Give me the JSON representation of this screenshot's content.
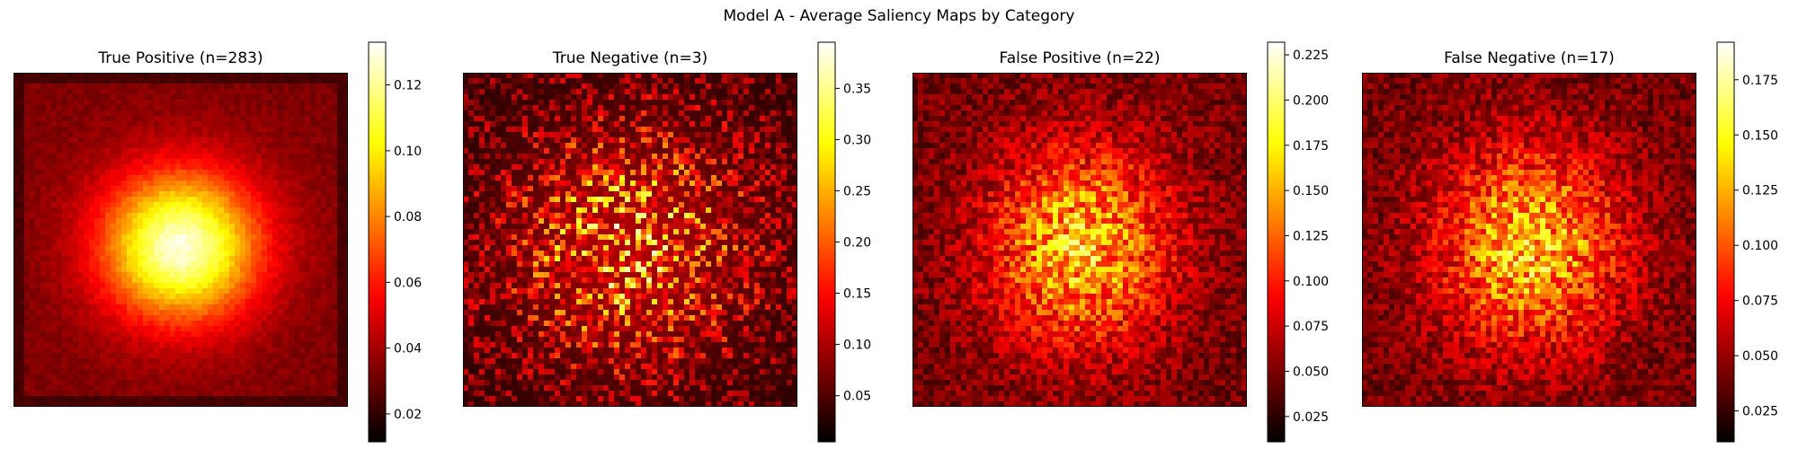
{
  "figure": {
    "suptitle": "Model A - Average Saliency Maps by Category",
    "colormap": "hot"
  },
  "chart_data": [
    {
      "type": "heatmap",
      "title": "True Positive (n=283)",
      "colormap": "hot",
      "pattern": "smooth-central-blob",
      "colorbar": {
        "range": [
          0.0115,
          0.133
        ],
        "ticks": [
          0.02,
          0.04,
          0.06,
          0.08,
          0.1,
          0.12
        ],
        "tick_labels": [
          "0.02",
          "0.04",
          "0.06",
          "0.08",
          "0.10",
          "0.12"
        ]
      }
    },
    {
      "type": "heatmap",
      "title": "True Negative (n=3)",
      "colormap": "hot",
      "pattern": "sparse-noisy",
      "colorbar": {
        "range": [
          0.005,
          0.395
        ],
        "ticks": [
          0.05,
          0.1,
          0.15,
          0.2,
          0.25,
          0.3,
          0.35
        ],
        "tick_labels": [
          "0.05",
          "0.10",
          "0.15",
          "0.20",
          "0.25",
          "0.30",
          "0.35"
        ]
      }
    },
    {
      "type": "heatmap",
      "title": "False Positive (n=22)",
      "colormap": "hot",
      "pattern": "noisy-central-blob",
      "colorbar": {
        "range": [
          0.011,
          0.232
        ],
        "ticks": [
          0.025,
          0.05,
          0.075,
          0.1,
          0.125,
          0.15,
          0.175,
          0.2,
          0.225
        ],
        "tick_labels": [
          "0.025",
          "0.050",
          "0.075",
          "0.100",
          "0.125",
          "0.150",
          "0.175",
          "0.200",
          "0.225"
        ]
      }
    },
    {
      "type": "heatmap",
      "title": "False Negative (n=17)",
      "colormap": "hot",
      "pattern": "noisy-central-blob",
      "colorbar": {
        "range": [
          0.011,
          0.192
        ],
        "ticks": [
          0.025,
          0.05,
          0.075,
          0.1,
          0.125,
          0.15,
          0.175
        ],
        "tick_labels": [
          "0.025",
          "0.050",
          "0.075",
          "0.100",
          "0.125",
          "0.150",
          "0.175"
        ]
      }
    }
  ]
}
